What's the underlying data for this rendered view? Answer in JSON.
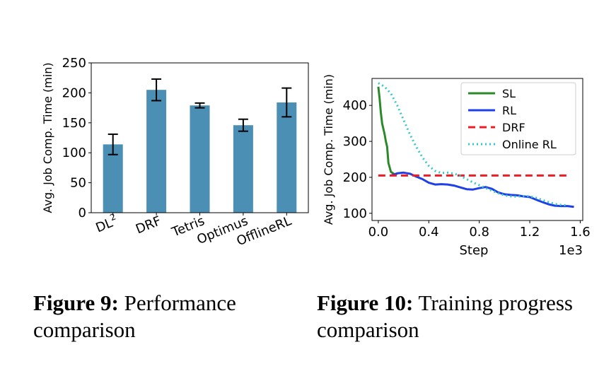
{
  "chart_data": [
    {
      "type": "bar",
      "categories": [
        "DL",
        "DRF",
        "Tetris",
        "Optimus",
        "OfflineRL"
      ],
      "category_superscripts": [
        "2",
        "",
        "",
        "",
        ""
      ],
      "values": [
        114,
        205,
        179,
        146,
        184
      ],
      "error_low": [
        97,
        187,
        175,
        136,
        160
      ],
      "error_high": [
        131,
        223,
        183,
        156,
        208
      ],
      "ylabel": "Avg. Job Comp. Time (min)",
      "yticks": [
        "0",
        "50",
        "100",
        "150",
        "200",
        "250"
      ],
      "ylim": [
        0,
        250
      ],
      "bar_color": "#4c8fb4",
      "grid": false
    },
    {
      "type": "line",
      "xlabel": "Step",
      "ylabel": "Avg. Job Comp. Time (min)",
      "x_multiplier": "1e3",
      "xticks": [
        "0.0",
        "0.4",
        "0.8",
        "1.2",
        "1.6"
      ],
      "yticks": [
        "100",
        "200",
        "300",
        "400"
      ],
      "xlim": [
        -0.05,
        1.62
      ],
      "ylim": [
        80,
        475
      ],
      "legend_position": "upper-right",
      "grid": false,
      "series": [
        {
          "name": "SL",
          "color": "#2a8a2a",
          "dash": "solid",
          "points": [
            [
              0.0,
              452
            ],
            [
              0.01,
              420
            ],
            [
              0.02,
              380
            ],
            [
              0.03,
              350
            ],
            [
              0.05,
              320
            ],
            [
              0.06,
              300
            ],
            [
              0.07,
              285
            ],
            [
              0.08,
              240
            ],
            [
              0.1,
              215
            ],
            [
              0.13,
              208
            ],
            [
              0.15,
              210
            ]
          ]
        },
        {
          "name": "RL",
          "color": "#1f3fe8",
          "dash": "solid",
          "points": [
            [
              0.1,
              205
            ],
            [
              0.15,
              211
            ],
            [
              0.2,
              213
            ],
            [
              0.25,
              210
            ],
            [
              0.3,
              202
            ],
            [
              0.35,
              195
            ],
            [
              0.4,
              185
            ],
            [
              0.45,
              180
            ],
            [
              0.5,
              181
            ],
            [
              0.55,
              180
            ],
            [
              0.6,
              177
            ],
            [
              0.65,
              172
            ],
            [
              0.7,
              167
            ],
            [
              0.75,
              166
            ],
            [
              0.8,
              170
            ],
            [
              0.85,
              173
            ],
            [
              0.9,
              168
            ],
            [
              0.95,
              158
            ],
            [
              1.0,
              153
            ],
            [
              1.05,
              151
            ],
            [
              1.1,
              150
            ],
            [
              1.15,
              147
            ],
            [
              1.2,
              145
            ],
            [
              1.25,
              138
            ],
            [
              1.3,
              131
            ],
            [
              1.35,
              125
            ],
            [
              1.4,
              121
            ],
            [
              1.45,
              120
            ],
            [
              1.5,
              120
            ],
            [
              1.55,
              118
            ]
          ]
        },
        {
          "name": "DRF",
          "color": "#ee1c25",
          "dash": "dashed",
          "points": [
            [
              0.0,
              205
            ],
            [
              1.5,
              205
            ]
          ]
        },
        {
          "name": "Online RL",
          "color": "#36c8c8",
          "dash": "dotted",
          "points": [
            [
              0.0,
              462
            ],
            [
              0.05,
              452
            ],
            [
              0.1,
              433
            ],
            [
              0.15,
              400
            ],
            [
              0.2,
              360
            ],
            [
              0.25,
              320
            ],
            [
              0.3,
              285
            ],
            [
              0.35,
              255
            ],
            [
              0.4,
              232
            ],
            [
              0.45,
              218
            ],
            [
              0.5,
              212
            ],
            [
              0.55,
              213
            ],
            [
              0.6,
              210
            ],
            [
              0.65,
              204
            ],
            [
              0.7,
              195
            ],
            [
              0.75,
              186
            ],
            [
              0.8,
              178
            ],
            [
              0.85,
              170
            ],
            [
              0.9,
              163
            ],
            [
              0.95,
              156
            ],
            [
              1.0,
              150
            ],
            [
              1.05,
              147
            ],
            [
              1.1,
              146
            ],
            [
              1.15,
              148
            ],
            [
              1.2,
              147
            ],
            [
              1.25,
              143
            ],
            [
              1.3,
              137
            ],
            [
              1.35,
              131
            ],
            [
              1.4,
              126
            ],
            [
              1.45,
              123
            ],
            [
              1.5,
              122
            ]
          ]
        }
      ]
    }
  ],
  "captions": {
    "fig9_label": "Figure 9:",
    "fig9_text": " Performance comparison",
    "fig10_label": "Figure 10:",
    "fig10_text": " Training progress comparison"
  }
}
